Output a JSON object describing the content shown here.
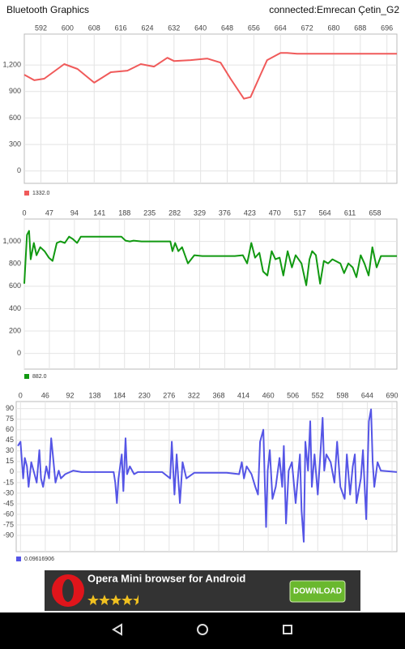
{
  "app": {
    "title": "Bluetooth Graphics",
    "status": "connected:Emrecan Çetin_G2"
  },
  "chart_data": [
    {
      "type": "line",
      "x": [
        587,
        590,
        593,
        599,
        603,
        608,
        613,
        618,
        622,
        626,
        630,
        632,
        637,
        642,
        646,
        649,
        653,
        655,
        658,
        660,
        664,
        666,
        669,
        699
      ],
      "series": [
        {
          "name": "1332.0",
          "color": "#f05a5a",
          "values": [
            1090,
            1027,
            1045,
            1210,
            1155,
            1000,
            1118,
            1136,
            1210,
            1182,
            1282,
            1245,
            1255,
            1273,
            1227,
            1045,
            818,
            836,
            1090,
            1255,
            1336,
            1336,
            1327,
            1327
          ]
        }
      ],
      "xlim": [
        587,
        699
      ],
      "ylim": [
        -140,
        1550
      ],
      "xticks": [
        592,
        600,
        608,
        616,
        624,
        632,
        640,
        648,
        656,
        664,
        672,
        680,
        688,
        696
      ],
      "yticks": [
        0,
        300,
        600,
        900,
        {
          "value": 1200,
          "label": "1,200"
        }
      ],
      "grid": true
    },
    {
      "type": "line",
      "x": [
        0,
        5,
        9,
        12,
        18,
        23,
        30,
        38,
        46,
        53,
        61,
        68,
        76,
        84,
        91,
        99,
        106,
        114,
        122,
        137,
        167,
        182,
        190,
        198,
        205,
        220,
        236,
        258,
        274,
        278,
        283,
        289,
        296,
        307,
        319,
        334,
        365,
        395,
        410,
        418,
        426,
        433,
        441,
        448,
        456,
        464,
        471,
        479,
        486,
        494,
        502,
        509,
        520,
        529,
        535,
        540,
        547,
        555,
        562,
        570,
        578,
        593,
        600,
        608,
        616,
        623,
        631,
        638,
        646,
        653,
        661,
        669,
        699
      ],
      "series": [
        {
          "name": "882.0",
          "color": "#119911",
          "values": [
            623,
            1058,
            1094,
            841,
            986,
            877,
            949,
            913,
            855,
            826,
            986,
            1000,
            986,
            1043,
            1022,
            986,
            1043,
            1043,
            1043,
            1043,
            1043,
            1043,
            1007,
            1000,
            1007,
            1000,
            1000,
            1000,
            1000,
            913,
            986,
            913,
            949,
            804,
            877,
            870,
            870,
            870,
            877,
            804,
            986,
            855,
            899,
            732,
            696,
            913,
            841,
            855,
            696,
            913,
            768,
            877,
            804,
            609,
            841,
            913,
            877,
            623,
            826,
            804,
            841,
            804,
            717,
            804,
            768,
            681,
            877,
            804,
            696,
            949,
            768,
            870,
            870
          ]
        }
      ],
      "xlim": [
        0,
        699
      ],
      "ylim": [
        -140,
        1200
      ],
      "xticks": [
        0,
        47,
        94,
        141,
        188,
        235,
        282,
        329,
        376,
        423,
        470,
        517,
        564,
        611,
        658
      ],
      "yticks": [
        0,
        200,
        400,
        600,
        800,
        {
          "value": 1000,
          "label": "1,000"
        }
      ],
      "grid": true
    },
    {
      "type": "line",
      "x": [
        -5,
        0,
        5,
        8,
        12,
        15,
        20,
        26,
        30,
        35,
        38,
        42,
        48,
        53,
        57,
        60,
        65,
        71,
        75,
        83,
        98,
        113,
        173,
        176,
        179,
        182,
        188,
        191,
        195,
        198,
        203,
        211,
        218,
        263,
        278,
        281,
        286,
        290,
        296,
        301,
        308,
        323,
        383,
        406,
        411,
        415,
        420,
        429,
        436,
        441,
        445,
        451,
        456,
        459,
        463,
        468,
        474,
        481,
        486,
        489,
        493,
        498,
        504,
        511,
        519,
        522,
        526,
        529,
        534,
        538,
        541,
        546,
        552,
        556,
        561,
        564,
        568,
        576,
        583,
        588,
        594,
        602,
        606,
        612,
        617,
        621,
        624,
        632,
        636,
        642,
        647,
        651,
        654,
        657,
        663,
        669,
        699
      ],
      "series": [
        {
          "name": "0.09616906",
          "color": "#5555e6",
          "values": [
            37,
            43,
            -9,
            20,
            8,
            -21,
            14,
            -3,
            -15,
            31,
            -9,
            -21,
            8,
            -9,
            48,
            25,
            -15,
            2,
            -9,
            -3,
            2,
            0,
            0,
            -15,
            -44,
            -9,
            25,
            -27,
            48,
            -3,
            8,
            -3,
            0,
            0,
            -9,
            43,
            -32,
            25,
            -44,
            14,
            -9,
            -1,
            -1,
            -3,
            14,
            -9,
            8,
            -3,
            -21,
            -32,
            43,
            60,
            -78,
            2,
            31,
            -38,
            -21,
            20,
            -21,
            37,
            -73,
            2,
            14,
            -44,
            25,
            -55,
            -99,
            43,
            2,
            72,
            -21,
            25,
            -32,
            14,
            77,
            2,
            25,
            14,
            -15,
            43,
            -21,
            -38,
            25,
            -32,
            8,
            25,
            -44,
            -9,
            31,
            -67,
            72,
            89,
            14,
            -21,
            14,
            2,
            0
          ]
        }
      ],
      "xlim": [
        -8,
        699
      ],
      "ylim": [
        -113,
        100
      ],
      "xticks": [
        0,
        46,
        92,
        138,
        184,
        230,
        276,
        322,
        368,
        414,
        460,
        506,
        552,
        598,
        644,
        690
      ],
      "yticks": [
        -90,
        -75,
        -60,
        -45,
        -30,
        -15,
        0,
        15,
        30,
        45,
        60,
        75,
        90
      ],
      "grid": true
    }
  ],
  "ad": {
    "title": "Opera Mini browser for Android",
    "button": "DOWNLOAD"
  }
}
